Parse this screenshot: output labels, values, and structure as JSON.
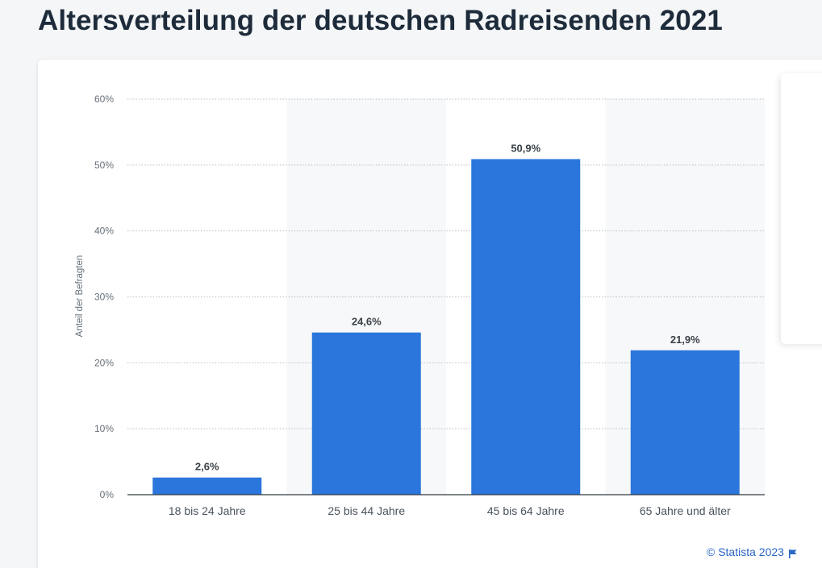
{
  "page": {
    "title": "Altersverteilung der deutschen Radreisenden 2021",
    "credit": "© Statista 2023",
    "credit_icon": "flag-icon"
  },
  "colors": {
    "bar": "#2a76dc",
    "band": "#f7f8f9",
    "grid": "#b8bec5",
    "axis": "#333a41",
    "credit": "#2a66c4"
  },
  "chart_data": {
    "type": "bar",
    "title": "Altersverteilung der deutschen Radreisenden 2021",
    "categories": [
      "18 bis 24 Jahre",
      "25 bis 44 Jahre",
      "45 bis 64 Jahre",
      "65 Jahre und älter"
    ],
    "values": [
      2.6,
      24.6,
      50.9,
      21.9
    ],
    "value_labels": [
      "2,6%",
      "24,6%",
      "50,9%",
      "21,9%"
    ],
    "ylabel": "Anteil der Befragten",
    "xlabel": "",
    "ylim": [
      0,
      60
    ],
    "yticks": [
      0,
      10,
      20,
      30,
      40,
      50,
      60
    ],
    "ytick_labels": [
      "0%",
      "10%",
      "20%",
      "30%",
      "40%",
      "50%",
      "60%"
    ],
    "grid": true,
    "legend": "none"
  }
}
